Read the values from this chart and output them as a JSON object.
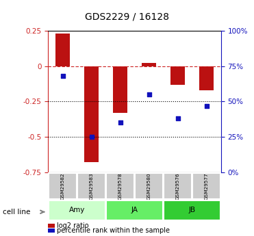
{
  "title": "GDS2229 / 16128",
  "samples": [
    "GSM29582",
    "GSM29583",
    "GSM29578",
    "GSM29580",
    "GSM29576",
    "GSM29577"
  ],
  "log2_ratio": [
    0.23,
    -0.68,
    -0.33,
    0.02,
    -0.13,
    -0.17
  ],
  "percentile_rank": [
    68,
    25,
    35,
    55,
    38,
    47
  ],
  "groups": [
    {
      "label": "Amy",
      "indices": [
        0,
        1
      ],
      "color": "#ccffcc"
    },
    {
      "label": "JA",
      "indices": [
        2,
        3
      ],
      "color": "#66ee66"
    },
    {
      "label": "JB",
      "indices": [
        4,
        5
      ],
      "color": "#33cc33"
    }
  ],
  "ylim_left": [
    -0.75,
    0.25
  ],
  "ylim_right": [
    0,
    100
  ],
  "yticks_left": [
    0.25,
    0.0,
    -0.25,
    -0.5,
    -0.75
  ],
  "yticks_right": [
    100,
    75,
    50,
    25,
    0
  ],
  "bar_color": "#bb1111",
  "scatter_color": "#1111bb",
  "bar_width": 0.5,
  "hline_zero_color": "#cc2222",
  "hline_dotted_values": [
    -0.25,
    -0.5
  ],
  "legend_bar_label": "log2 ratio",
  "legend_scatter_label": "percentile rank within the sample",
  "cell_line_label": "cell line",
  "sample_box_color": "#cccccc",
  "fig_width": 3.71,
  "fig_height": 3.45,
  "dpi": 100
}
